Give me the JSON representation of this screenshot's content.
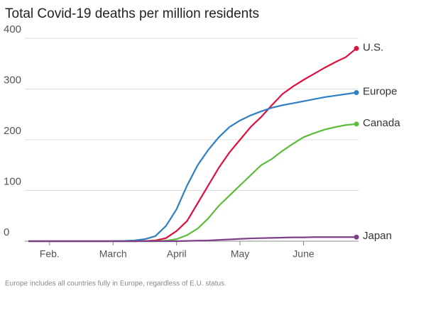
{
  "chart_data": {
    "type": "line",
    "title": "Total Covid-19 deaths per million residents",
    "note": "Europe includes all countries fully in Europe, regardless of E.U. status.",
    "categories": [
      null,
      null,
      "Feb.",
      null,
      null,
      null,
      null,
      null,
      "March",
      null,
      null,
      null,
      null,
      null,
      "April",
      null,
      null,
      null,
      null,
      null,
      "May",
      null,
      null,
      null,
      null,
      null,
      "June",
      null,
      null,
      null,
      null,
      null
    ],
    "series": [
      {
        "name": "U.S.",
        "color": "#e0103e",
        "values": [
          0,
          0,
          0,
          0,
          0,
          0,
          0,
          0,
          0,
          0,
          0,
          0.3,
          1.5,
          6,
          20,
          40,
          75,
          110,
          145,
          175,
          200,
          225,
          245,
          268,
          290,
          305,
          318,
          330,
          342,
          353,
          363,
          380
        ]
      },
      {
        "name": "Europe",
        "color": "#2e7fc4",
        "values": [
          0,
          0,
          0,
          0,
          0,
          0,
          0,
          0,
          0.2,
          0.5,
          1.5,
          4,
          10,
          30,
          63,
          110,
          150,
          180,
          205,
          225,
          238,
          248,
          256,
          263,
          268,
          272,
          276,
          280,
          284,
          287,
          290,
          293
        ]
      },
      {
        "name": "Canada",
        "color": "#5bbd3a",
        "values": [
          0,
          0,
          0,
          0,
          0,
          0,
          0,
          0,
          0,
          0,
          0,
          0,
          0,
          1,
          4,
          12,
          25,
          45,
          70,
          90,
          110,
          130,
          150,
          162,
          178,
          192,
          205,
          213,
          220,
          225,
          229,
          231
        ]
      },
      {
        "name": "Japan",
        "color": "#7d3f88",
        "values": [
          0,
          0,
          0,
          0,
          0,
          0,
          0,
          0,
          0,
          0,
          0,
          0,
          0,
          0,
          0,
          0.5,
          1,
          1.5,
          2.5,
          3.5,
          4.5,
          5.5,
          6,
          6.5,
          7,
          7.5,
          7.5,
          8,
          8,
          8,
          8,
          8
        ]
      }
    ],
    "ylim": [
      0,
      400
    ],
    "yticks": [
      0,
      100,
      200,
      300,
      400
    ],
    "grid": true
  }
}
